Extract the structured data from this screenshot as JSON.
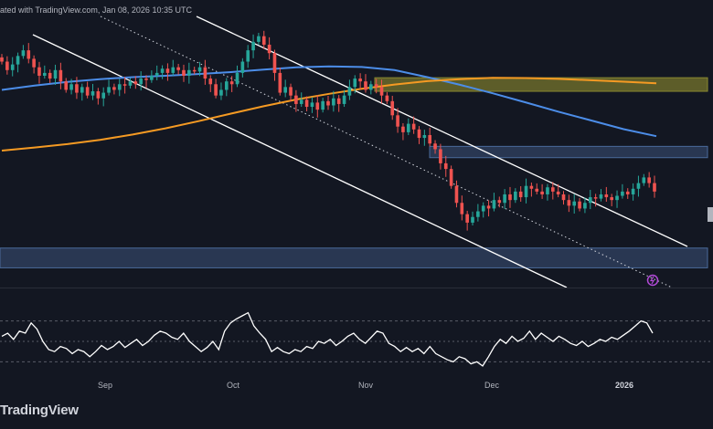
{
  "header": {
    "text": "ated with TradingView.com, Jan 08, 2026 10:35 UTC"
  },
  "footer": {
    "logo_text": "TradingView"
  },
  "colors": {
    "background": "#131722",
    "candle_up": "#26a69a",
    "candle_down": "#ef5350",
    "ma_blue": "#4c8de8",
    "ma_orange": "#f59a23",
    "channel": "#ffffff",
    "zone_yellow": "#6b6a2a",
    "zone_blue": "#2e3d5a",
    "rsi": "#ffffff"
  },
  "chart_data": {
    "type": "line",
    "title": "",
    "xlabel": "",
    "ylabel": "",
    "x_tick_labels": [
      "Sep",
      "Oct",
      "Nov",
      "Dec",
      "2026"
    ],
    "grid": false,
    "price_panel": {
      "series": [
        {
          "kind": "candlestick",
          "closes": [
            124.0,
            121.0,
            123.0,
            126.0,
            128.0,
            125.0,
            122.0,
            119.0,
            120.0,
            118.0,
            121.0,
            117.0,
            114.0,
            116.0,
            113.0,
            115.0,
            112.0,
            113.5,
            111.0,
            113.0,
            115.0,
            114.0,
            116.0,
            115.5,
            117.0,
            116.0,
            118.0,
            117.5,
            119.0,
            120.0,
            121.5,
            120.0,
            122.0,
            121.0,
            119.0,
            121.0,
            120.5,
            122.0,
            118.0,
            116.0,
            112.0,
            114.0,
            117.0,
            116.0,
            120.0,
            124.0,
            128.0,
            131.0,
            133.0,
            130.0,
            127.0,
            120.0,
            113.0,
            115.0,
            112.0,
            109.0,
            110.5,
            108.0,
            109.5,
            107.0,
            110.0,
            108.5,
            111.0,
            109.0,
            112.0,
            115.0,
            118.0,
            117.0,
            114.0,
            116.0,
            115.0,
            112.0,
            110.0,
            105.0,
            101.0,
            99.0,
            102.0,
            100.0,
            97.0,
            98.0,
            95.0,
            93.0,
            88.0,
            86.0,
            80.0,
            74.0,
            70.0,
            67.0,
            69.0,
            71.0,
            73.0,
            72.0,
            75.0,
            74.0,
            77.0,
            75.0,
            78.0,
            76.0,
            80.0,
            79.0,
            78.0,
            77.0,
            79.5,
            78.0,
            77.0,
            75.0,
            73.0,
            74.5,
            72.0,
            74.0,
            76.0,
            75.5,
            77.0,
            76.0,
            75.0,
            76.5,
            78.0,
            77.0,
            79.0,
            81.0,
            83.0,
            81.0,
            78.0
          ],
          "up_color": "#26a69a",
          "down_color": "#ef5350"
        },
        {
          "kind": "moving_average",
          "color": "#4c8de8",
          "values": [
            114.0,
            115.5,
            116.8,
            117.8,
            118.5,
            119.0,
            119.6,
            120.3,
            121.2,
            122.0,
            122.3,
            122.1,
            121.0,
            118.5,
            115.8,
            112.8,
            109.6,
            106.3,
            103.2,
            100.1,
            97.6
          ]
        },
        {
          "kind": "moving_average",
          "color": "#f59a23",
          "values": [
            92.5,
            93.6,
            94.8,
            96.3,
            98.2,
            100.4,
            102.9,
            105.6,
            108.2,
            110.6,
            112.6,
            114.4,
            115.9,
            117.1,
            117.8,
            118.3,
            118.2,
            117.9,
            117.4,
            116.9,
            116.3
          ]
        }
      ],
      "zones": [
        {
          "name": "resistance",
          "color": "#6b6a2a",
          "y_range": [
            113.5,
            118.3
          ]
        },
        {
          "name": "resistance",
          "color": "#2e3d5a",
          "y_range": [
            90.0,
            94.0
          ]
        },
        {
          "name": "support",
          "color": "#2e3d5a",
          "y_range": [
            51.0,
            58.0
          ]
        }
      ],
      "channel_lines": 3
    },
    "rsi_panel": {
      "levels": [
        70,
        50,
        30
      ],
      "values": [
        55,
        58,
        52,
        60,
        58,
        68,
        62,
        50,
        42,
        40,
        45,
        43,
        38,
        42,
        40,
        35,
        40,
        46,
        42,
        45,
        50,
        44,
        48,
        52,
        46,
        50,
        56,
        60,
        58,
        54,
        52,
        58,
        50,
        45,
        40,
        44,
        50,
        42,
        60,
        68,
        72,
        75,
        78,
        65,
        58,
        52,
        40,
        44,
        40,
        38,
        42,
        40,
        45,
        43,
        50,
        48,
        52,
        46,
        50,
        55,
        58,
        52,
        48,
        54,
        60,
        58,
        48,
        45,
        40,
        44,
        40,
        43,
        38,
        45,
        38,
        35,
        32,
        30,
        35,
        33,
        28,
        30,
        26,
        35,
        45,
        52,
        48,
        55,
        50,
        53,
        60,
        52,
        58,
        54,
        50,
        55,
        52,
        48,
        46,
        50,
        45,
        48,
        52,
        50,
        54,
        52,
        56,
        60,
        65,
        70,
        68,
        58
      ],
      "color": "#ffffff"
    }
  }
}
